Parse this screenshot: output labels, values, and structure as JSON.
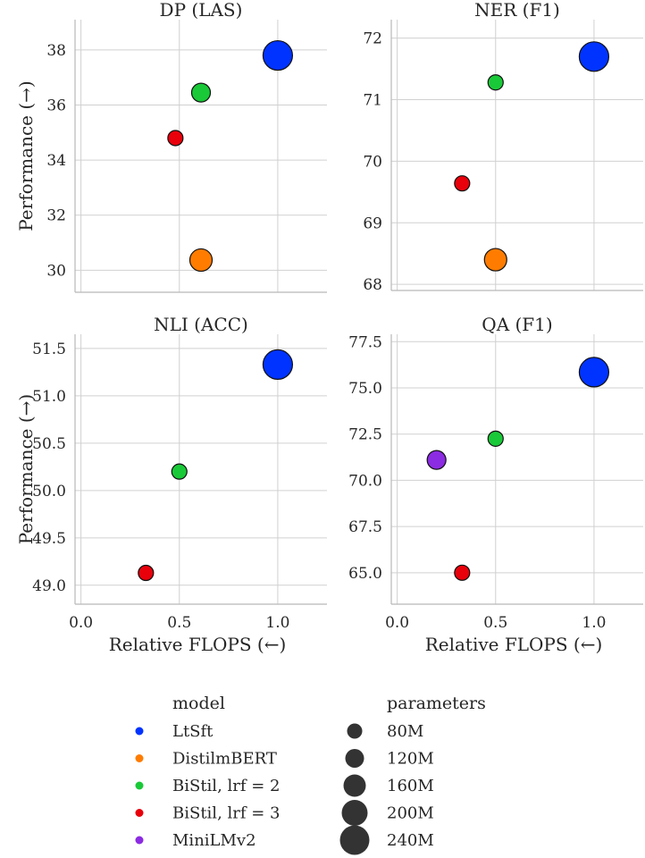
{
  "chart_data": [
    {
      "type": "scatter",
      "title": "DP (LAS)",
      "ylabel": "Performance (→)",
      "xlabel": "",
      "xlim": [
        -0.03,
        1.25
      ],
      "ylim": [
        29.2,
        39.1
      ],
      "xticks": [],
      "yticks": [
        "30",
        "32",
        "34",
        "36",
        "38"
      ],
      "grid": true,
      "points": [
        {
          "model": "LtSft",
          "x": 1.0,
          "y": 37.8,
          "parameters": "240M"
        },
        {
          "model": "DistilmBERT",
          "x": 0.61,
          "y": 30.37,
          "parameters": "160M"
        },
        {
          "model": "BiStil, lrf = 2",
          "x": 0.61,
          "y": 36.45,
          "parameters": "120M"
        },
        {
          "model": "BiStil, lrf = 3",
          "x": 0.48,
          "y": 34.8,
          "parameters": "80M"
        }
      ]
    },
    {
      "type": "scatter",
      "title": "NER (F1)",
      "ylabel": "",
      "xlabel": "",
      "xlim": [
        -0.03,
        1.25
      ],
      "ylim": [
        67.9,
        72.3
      ],
      "xticks": [],
      "yticks": [
        "68",
        "69",
        "70",
        "71",
        "72"
      ],
      "grid": true,
      "points": [
        {
          "model": "LtSft",
          "x": 1.0,
          "y": 71.7,
          "parameters": "240M"
        },
        {
          "model": "DistilmBERT",
          "x": 0.5,
          "y": 68.4,
          "parameters": "160M"
        },
        {
          "model": "BiStil, lrf = 2",
          "x": 0.5,
          "y": 71.28,
          "parameters": "80M"
        },
        {
          "model": "BiStil, lrf = 3",
          "x": 0.33,
          "y": 69.64,
          "parameters": "80M"
        }
      ]
    },
    {
      "type": "scatter",
      "title": "NLI (ACC)",
      "ylabel": "Performance (→)",
      "xlabel": "Relative FLOPS (←)",
      "xlim": [
        -0.03,
        1.25
      ],
      "ylim": [
        48.8,
        51.65
      ],
      "xticks": [
        "0.0",
        "0.5",
        "1.0"
      ],
      "yticks": [
        "49.0",
        "49.5",
        "50.0",
        "50.5",
        "51.0",
        "51.5"
      ],
      "grid": true,
      "points": [
        {
          "model": "LtSft",
          "x": 1.0,
          "y": 51.33,
          "parameters": "240M"
        },
        {
          "model": "BiStil, lrf = 2",
          "x": 0.5,
          "y": 50.2,
          "parameters": "80M"
        },
        {
          "model": "BiStil, lrf = 3",
          "x": 0.33,
          "y": 49.13,
          "parameters": "80M"
        }
      ]
    },
    {
      "type": "scatter",
      "title": "QA (F1)",
      "ylabel": "",
      "xlabel": "Relative FLOPS (←)",
      "xlim": [
        -0.03,
        1.25
      ],
      "ylim": [
        63.3,
        77.9
      ],
      "xticks": [
        "0.0",
        "0.5",
        "1.0"
      ],
      "yticks": [
        "65.0",
        "67.5",
        "70.0",
        "72.5",
        "75.0",
        "77.5"
      ],
      "grid": true,
      "points": [
        {
          "model": "LtSft",
          "x": 1.0,
          "y": 75.85,
          "parameters": "240M"
        },
        {
          "model": "BiStil, lrf = 2",
          "x": 0.5,
          "y": 72.25,
          "parameters": "80M"
        },
        {
          "model": "BiStil, lrf = 3",
          "x": 0.33,
          "y": 65.0,
          "parameters": "80M"
        },
        {
          "model": "MiniLMv2",
          "x": 0.2,
          "y": 71.1,
          "parameters": "120M"
        }
      ]
    }
  ],
  "legend": {
    "placement": "bottom",
    "model_title": "model",
    "models": [
      {
        "label": "LtSft",
        "color": "#0033ff"
      },
      {
        "label": "DistilmBERT",
        "color": "#ff7c00"
      },
      {
        "label": "BiStil, lrf = 2",
        "color": "#1ac938"
      },
      {
        "label": "BiStil, lrf = 3",
        "color": "#e8000b"
      },
      {
        "label": "MiniLMv2",
        "color": "#8b2be2"
      }
    ],
    "size_title": "parameters",
    "sizes": [
      {
        "label": "80M"
      },
      {
        "label": "120M"
      },
      {
        "label": "160M"
      },
      {
        "label": "200M"
      },
      {
        "label": "240M"
      }
    ]
  }
}
